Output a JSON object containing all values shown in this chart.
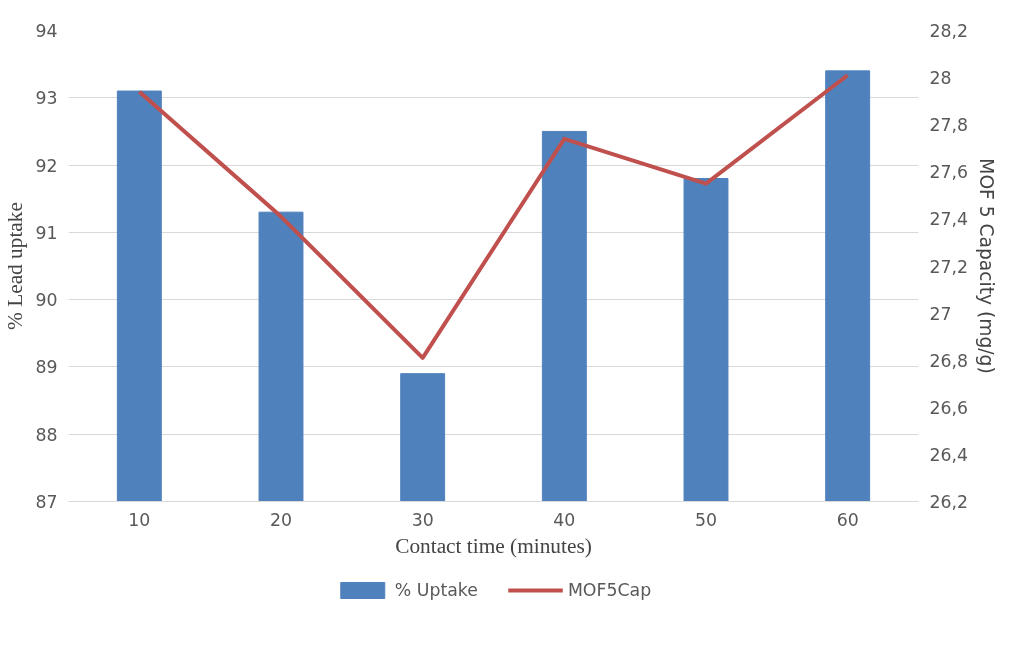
{
  "chart_data": {
    "type": "bar",
    "xlabel": "Contact time (minutes)",
    "ylabel": "% Lead uptake",
    "y2label": "MOF 5 Capacity (mg/g)",
    "categories": [
      "10",
      "20",
      "30",
      "40",
      "50",
      "60"
    ],
    "series": [
      {
        "name": "% Uptake",
        "color": "#4f81bd",
        "values": [
          93.1,
          91.3,
          88.9,
          92.5,
          91.8,
          93.4
        ]
      },
      {
        "name": "MOF5Cap",
        "type": "line",
        "axis": "y2",
        "color": "#c0504d",
        "values": [
          27.94,
          27.41,
          26.81,
          27.74,
          27.55,
          28.01
        ]
      }
    ],
    "ylim": [
      87,
      94
    ],
    "yticks": [
      87,
      88,
      89,
      90,
      91,
      92,
      93,
      94
    ],
    "y2lim": [
      26.2,
      28.2
    ],
    "y2ticks": [
      {
        "value": 26.2,
        "label": "26,2"
      },
      {
        "value": 26.4,
        "label": "26,4"
      },
      {
        "value": 26.6,
        "label": "26,6"
      },
      {
        "value": 26.8,
        "label": "26,8"
      },
      {
        "value": 27,
        "label": "27"
      },
      {
        "value": 27.2,
        "label": "27,2"
      },
      {
        "value": 27.4,
        "label": "27,4"
      },
      {
        "value": 27.6,
        "label": "27,6"
      },
      {
        "value": 27.8,
        "label": "27,8"
      },
      {
        "value": 28,
        "label": "28"
      },
      {
        "value": 28.2,
        "label": "28,2"
      }
    ],
    "grid": "y",
    "legend": "bottom",
    "marker": "none",
    "line_style": "solid"
  }
}
